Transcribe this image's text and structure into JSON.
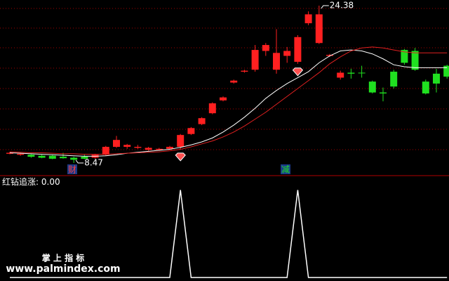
{
  "chart_data": {
    "type": "candlestick",
    "open": [
      9.4,
      9.3,
      9.3,
      9.2,
      9.2,
      9.1,
      9.0,
      9.1,
      9.0,
      9.3,
      10.1,
      10.1,
      10.0,
      9.8,
      9.8,
      9.9,
      10.1,
      11.4,
      12.4,
      13.5,
      14.8,
      16.6,
      17.7,
      17.9,
      19.8,
      17.9,
      19.3,
      18.7,
      22.6,
      20.6,
      19.3,
      17.1,
      17.6,
      17.6,
      16.7,
      15.6,
      17.7,
      19.9,
      19.8,
      16.7,
      17.5,
      18.3
    ],
    "close": [
      9.5,
      9.4,
      9.1,
      9.0,
      8.9,
      8.95,
      8.8,
      8.9,
      9.3,
      10.1,
      10.8,
      10.3,
      10.1,
      10.0,
      9.9,
      10.1,
      11.3,
      12.0,
      13.0,
      14.5,
      15.1,
      16.8,
      17.8,
      19.9,
      20.4,
      19.6,
      19.8,
      21.2,
      23.5,
      23.5,
      19.4,
      17.6,
      17.5,
      17.55,
      15.6,
      15.5,
      16.2,
      18.6,
      17.9,
      15.5,
      16.5,
      17.2
    ],
    "high": [
      9.6,
      9.5,
      9.35,
      9.3,
      9.3,
      9.5,
      9.1,
      9.3,
      9.4,
      10.2,
      11.2,
      10.4,
      10.3,
      10.1,
      10.0,
      10.2,
      11.4,
      12.1,
      13.1,
      14.6,
      15.2,
      16.9,
      17.9,
      20.4,
      20.6,
      22.0,
      20.2,
      21.4,
      23.8,
      24.38,
      19.5,
      17.8,
      18.0,
      18.3,
      16.8,
      16.1,
      17.9,
      20.0,
      20.1,
      16.9,
      18.0,
      18.4
    ],
    "low": [
      9.35,
      9.2,
      9.0,
      8.95,
      8.85,
      8.9,
      8.47,
      8.85,
      8.9,
      9.2,
      10.0,
      9.9,
      9.9,
      9.7,
      9.7,
      9.8,
      9.9,
      11.3,
      12.3,
      13.4,
      14.7,
      16.5,
      17.6,
      17.7,
      19.3,
      17.5,
      18.6,
      18.5,
      22.4,
      20.5,
      19.2,
      16.9,
      17.0,
      17.1,
      15.5,
      14.7,
      16.0,
      18.4,
      17.8,
      15.4,
      15.6,
      17.0
    ],
    "up_color": "#ff2020",
    "down_color": "#20e020",
    "ma": [
      {
        "color": "#ffffff",
        "values": [
          9.5,
          9.45,
          9.4,
          9.35,
          9.3,
          9.25,
          9.2,
          9.15,
          9.15,
          9.2,
          9.3,
          9.45,
          9.55,
          9.65,
          9.75,
          9.85,
          10.05,
          10.3,
          10.6,
          11.0,
          11.6,
          12.3,
          13.1,
          14.0,
          15.0,
          15.8,
          16.5,
          17.1,
          17.7,
          18.6,
          19.3,
          19.8,
          19.9,
          19.8,
          19.5,
          19.0,
          18.4,
          18.2,
          18.1,
          18.1,
          18.1,
          18.1
        ]
      },
      {
        "color": "#e02020",
        "values": [
          9.6,
          9.55,
          9.5,
          9.5,
          9.45,
          9.4,
          9.4,
          9.35,
          9.35,
          9.35,
          9.4,
          9.45,
          9.5,
          9.55,
          9.6,
          9.7,
          9.85,
          10.1,
          10.4,
          10.7,
          11.1,
          11.6,
          12.2,
          12.9,
          13.6,
          14.4,
          15.2,
          16.0,
          16.8,
          17.6,
          18.5,
          19.2,
          19.8,
          20.1,
          20.2,
          20.1,
          19.9,
          19.7,
          19.6,
          19.6,
          19.6,
          19.6
        ]
      }
    ],
    "ylim": [
      7.19,
      24.95
    ],
    "annotations": {
      "high": 24.38,
      "low": 8.47
    },
    "signals": [
      "财",
      "减"
    ],
    "indicator": {
      "name": "红钻追涨",
      "current": "0.00",
      "color": "#ffffff",
      "ylim": [
        -0.04,
        1.1
      ],
      "values": [
        0,
        0,
        0,
        0,
        0,
        0,
        0,
        0,
        0,
        0,
        0,
        0,
        0,
        0,
        0,
        0,
        1,
        0,
        0,
        0,
        0,
        0,
        0,
        0,
        0,
        0,
        0,
        1,
        0,
        0,
        0,
        0,
        0,
        0,
        0,
        0,
        0,
        0,
        0,
        0,
        0,
        0
      ]
    },
    "watermark": {
      "title": "掌 上 指 标",
      "url": "www.palmindex.com"
    }
  }
}
